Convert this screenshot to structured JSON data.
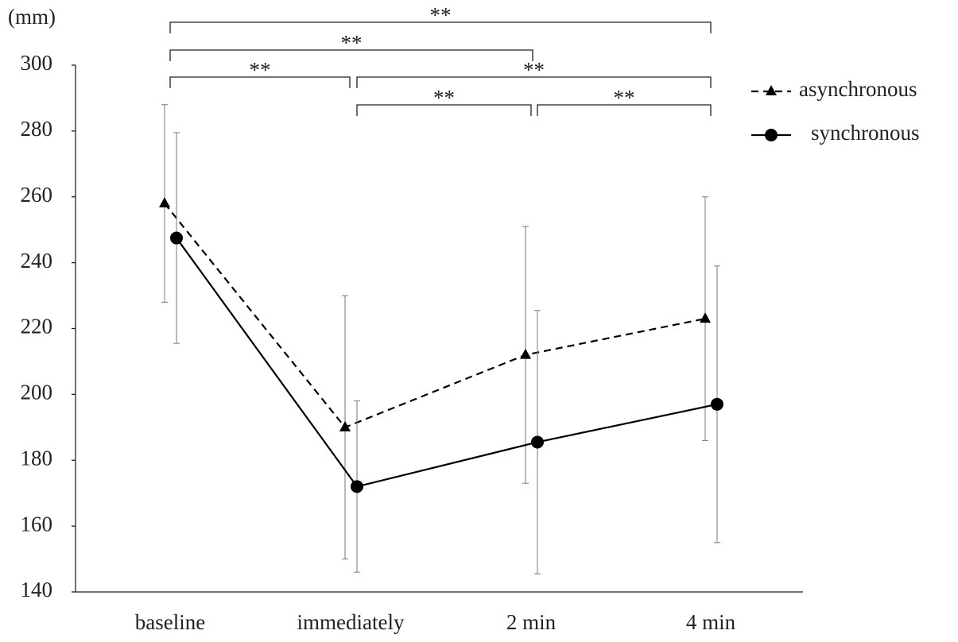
{
  "chart_data": {
    "type": "line",
    "y_label": "(mm)",
    "categories": [
      "baseline",
      "immediately",
      "2 min",
      "4 min"
    ],
    "ylim": [
      140,
      300
    ],
    "yticks": [
      140,
      160,
      180,
      200,
      220,
      240,
      260,
      280,
      300
    ],
    "series": [
      {
        "name": "asynchronous",
        "color": "#000000",
        "dash": true,
        "marker": "triangle",
        "values": [
          258,
          190,
          212,
          223
        ],
        "errors": [
          30,
          40,
          39,
          37
        ]
      },
      {
        "name": "synchronous",
        "color": "#000000",
        "dash": false,
        "marker": "circle",
        "values": [
          247.5,
          172,
          185.5,
          197
        ],
        "errors": [
          32,
          26,
          40,
          42
        ]
      }
    ],
    "annotations": [
      {
        "from": "baseline",
        "to": "4 min",
        "text": "**"
      },
      {
        "from": "baseline",
        "to": "2 min",
        "text": "**"
      },
      {
        "from": "baseline",
        "to": "immediately",
        "text": "**"
      },
      {
        "from": "immediately",
        "to": "4 min",
        "text": "**"
      },
      {
        "from": "immediately",
        "to": "2 min",
        "text": "**"
      },
      {
        "from": "2 min",
        "to": "4 min",
        "text": "**"
      }
    ],
    "legend": "top-right",
    "grid": false
  }
}
